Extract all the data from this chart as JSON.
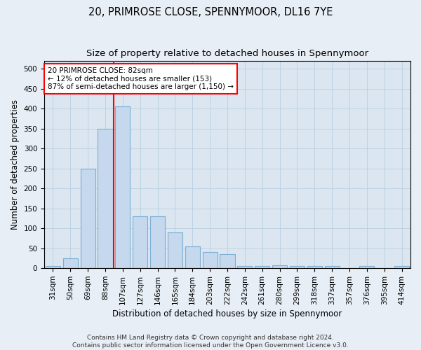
{
  "title": "20, PRIMROSE CLOSE, SPENNYMOOR, DL16 7YE",
  "subtitle": "Size of property relative to detached houses in Spennymoor",
  "xlabel": "Distribution of detached houses by size in Spennymoor",
  "ylabel": "Number of detached properties",
  "categories": [
    "31sqm",
    "50sqm",
    "69sqm",
    "88sqm",
    "107sqm",
    "127sqm",
    "146sqm",
    "165sqm",
    "184sqm",
    "203sqm",
    "222sqm",
    "242sqm",
    "261sqm",
    "280sqm",
    "299sqm",
    "318sqm",
    "337sqm",
    "357sqm",
    "376sqm",
    "395sqm",
    "414sqm"
  ],
  "values": [
    5,
    25,
    250,
    350,
    405,
    130,
    130,
    90,
    55,
    40,
    35,
    5,
    5,
    8,
    5,
    5,
    5,
    0,
    5,
    0,
    5
  ],
  "bar_color": "#c5d8ee",
  "bar_edge_color": "#7bafd4",
  "vline_x": 3.5,
  "vline_color": "red",
  "annotation_text": "20 PRIMROSE CLOSE: 82sqm\n← 12% of detached houses are smaller (153)\n87% of semi-detached houses are larger (1,150) →",
  "annotation_box_color": "white",
  "annotation_box_edge_color": "red",
  "ylim": [
    0,
    520
  ],
  "yticks": [
    0,
    50,
    100,
    150,
    200,
    250,
    300,
    350,
    400,
    450,
    500
  ],
  "footer1": "Contains HM Land Registry data © Crown copyright and database right 2024.",
  "footer2": "Contains public sector information licensed under the Open Government Licence v3.0.",
  "bg_color": "#e8eef5",
  "plot_bg_color": "#dce6f0",
  "title_fontsize": 10.5,
  "subtitle_fontsize": 9.5,
  "label_fontsize": 8.5,
  "tick_fontsize": 7.5,
  "footer_fontsize": 6.5
}
